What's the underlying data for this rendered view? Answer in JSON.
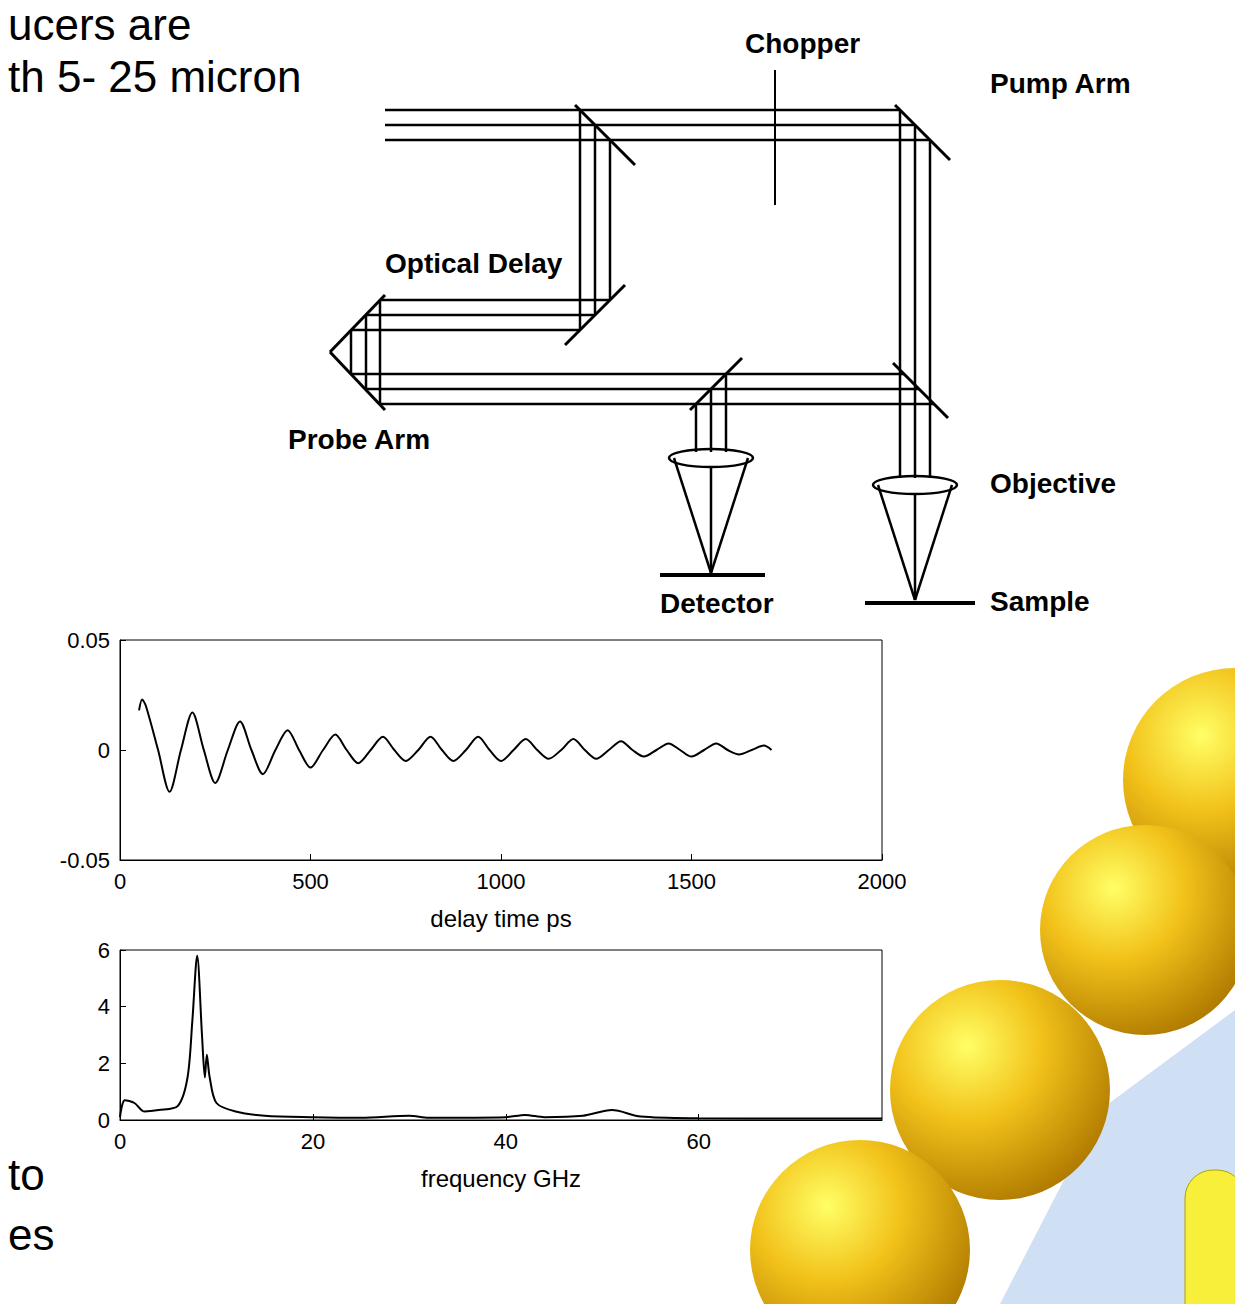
{
  "slide_text": [
    "ucers are",
    "th 5- 25 micron",
    "to",
    "es"
  ],
  "diagram": {
    "labels": {
      "chopper": "Chopper",
      "pump": "Pump Arm",
      "delay": "Optical Delay",
      "probe": "Probe Arm",
      "objective": "Objective",
      "detector": "Detector",
      "sample": "Sample"
    }
  },
  "chart_data": [
    {
      "type": "line",
      "x_label": "delay time ps",
      "color": "#000000",
      "grid": false,
      "x": [
        50,
        58,
        68,
        100,
        130,
        160,
        190,
        220,
        250,
        283,
        315,
        345,
        375,
        408,
        440,
        470,
        500,
        533,
        565,
        595,
        625,
        658,
        690,
        720,
        750,
        783,
        815,
        845,
        875,
        908,
        940,
        970,
        1000,
        1033,
        1065,
        1095,
        1125,
        1158,
        1190,
        1220,
        1250,
        1283,
        1315,
        1345,
        1375,
        1408,
        1440,
        1470,
        1500,
        1533,
        1565,
        1595,
        1625,
        1658,
        1690,
        1710
      ],
      "values": [
        0.018,
        0.023,
        0.02,
        0,
        -0.019,
        0,
        0.017,
        0,
        -0.015,
        0,
        0.013,
        0,
        -0.011,
        0,
        0.009,
        0,
        -0.008,
        0,
        0.007,
        0,
        -0.006,
        0,
        0.006,
        0,
        -0.005,
        0,
        0.006,
        0,
        -0.005,
        0,
        0.006,
        0,
        -0.005,
        0,
        0.005,
        0,
        -0.004,
        0,
        0.005,
        0,
        -0.004,
        0,
        0.004,
        0,
        -0.003,
        0,
        0.003,
        0,
        -0.003,
        0,
        0.003,
        0,
        -0.002,
        0,
        0.002,
        0
      ],
      "xlim": [
        0,
        2000
      ],
      "xticks": [
        0,
        500,
        1000,
        1500,
        2000
      ],
      "ylim": [
        -0.05,
        0.05
      ],
      "yticks": [
        -0.05,
        0,
        0.05
      ]
    },
    {
      "type": "line",
      "x_label": "frequency GHz",
      "color": "#000000",
      "grid": false,
      "x": [
        0,
        0.5,
        1.5,
        2.5,
        4,
        6,
        7,
        7.5,
        8,
        8.5,
        8.8,
        9,
        9.3,
        10,
        12,
        15,
        20,
        25,
        30,
        32,
        40,
        42,
        44,
        48,
        51,
        54,
        60,
        70,
        79
      ],
      "values": [
        0.1,
        0.7,
        0.6,
        0.3,
        0.35,
        0.5,
        1.5,
        3.5,
        5.8,
        3,
        1.5,
        2.3,
        1.5,
        0.6,
        0.3,
        0.15,
        0.1,
        0.08,
        0.15,
        0.08,
        0.1,
        0.18,
        0.1,
        0.15,
        0.35,
        0.12,
        0.06,
        0.05,
        0.05
      ],
      "xlim": [
        0,
        79
      ],
      "xticks": [
        0,
        20,
        40,
        60
      ],
      "ylim": [
        0,
        6
      ],
      "yticks": [
        0,
        2,
        4,
        6
      ]
    }
  ]
}
